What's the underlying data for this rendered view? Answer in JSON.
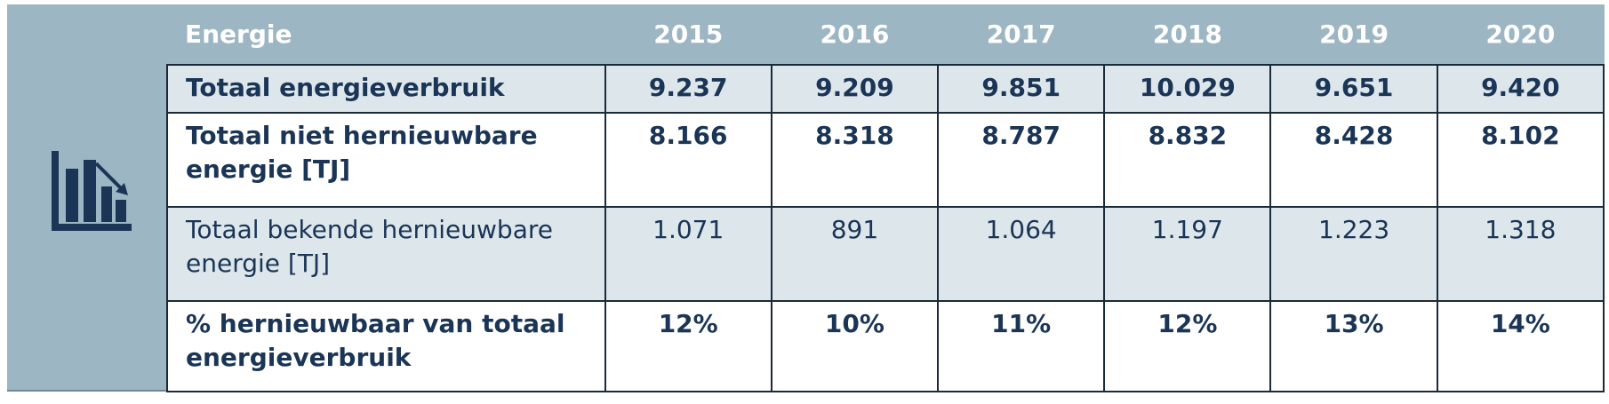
{
  "table": {
    "header": [
      "Energie",
      "2015",
      "2016",
      "2017",
      "2018",
      "2019",
      "2020"
    ],
    "rows": [
      [
        "Totaal energieverbruik",
        "9.237",
        "9.209",
        "9.851",
        "10.029",
        "9.651",
        "9.420"
      ],
      [
        "Totaal niet hernieuwbare energie [TJ]",
        "8.166",
        "8.318",
        "8.787",
        "8.832",
        "8.428",
        "8.102"
      ],
      [
        "Totaal bekende hernieuwbare energie [TJ]",
        "1.071",
        "891",
        "1.064",
        "1.197",
        "1.223",
        "1.318"
      ],
      [
        "% hernieuwbaar van totaal energieverbruik",
        "12%",
        "10%",
        "11%",
        "12%",
        "13%",
        "14%"
      ]
    ]
  }
}
